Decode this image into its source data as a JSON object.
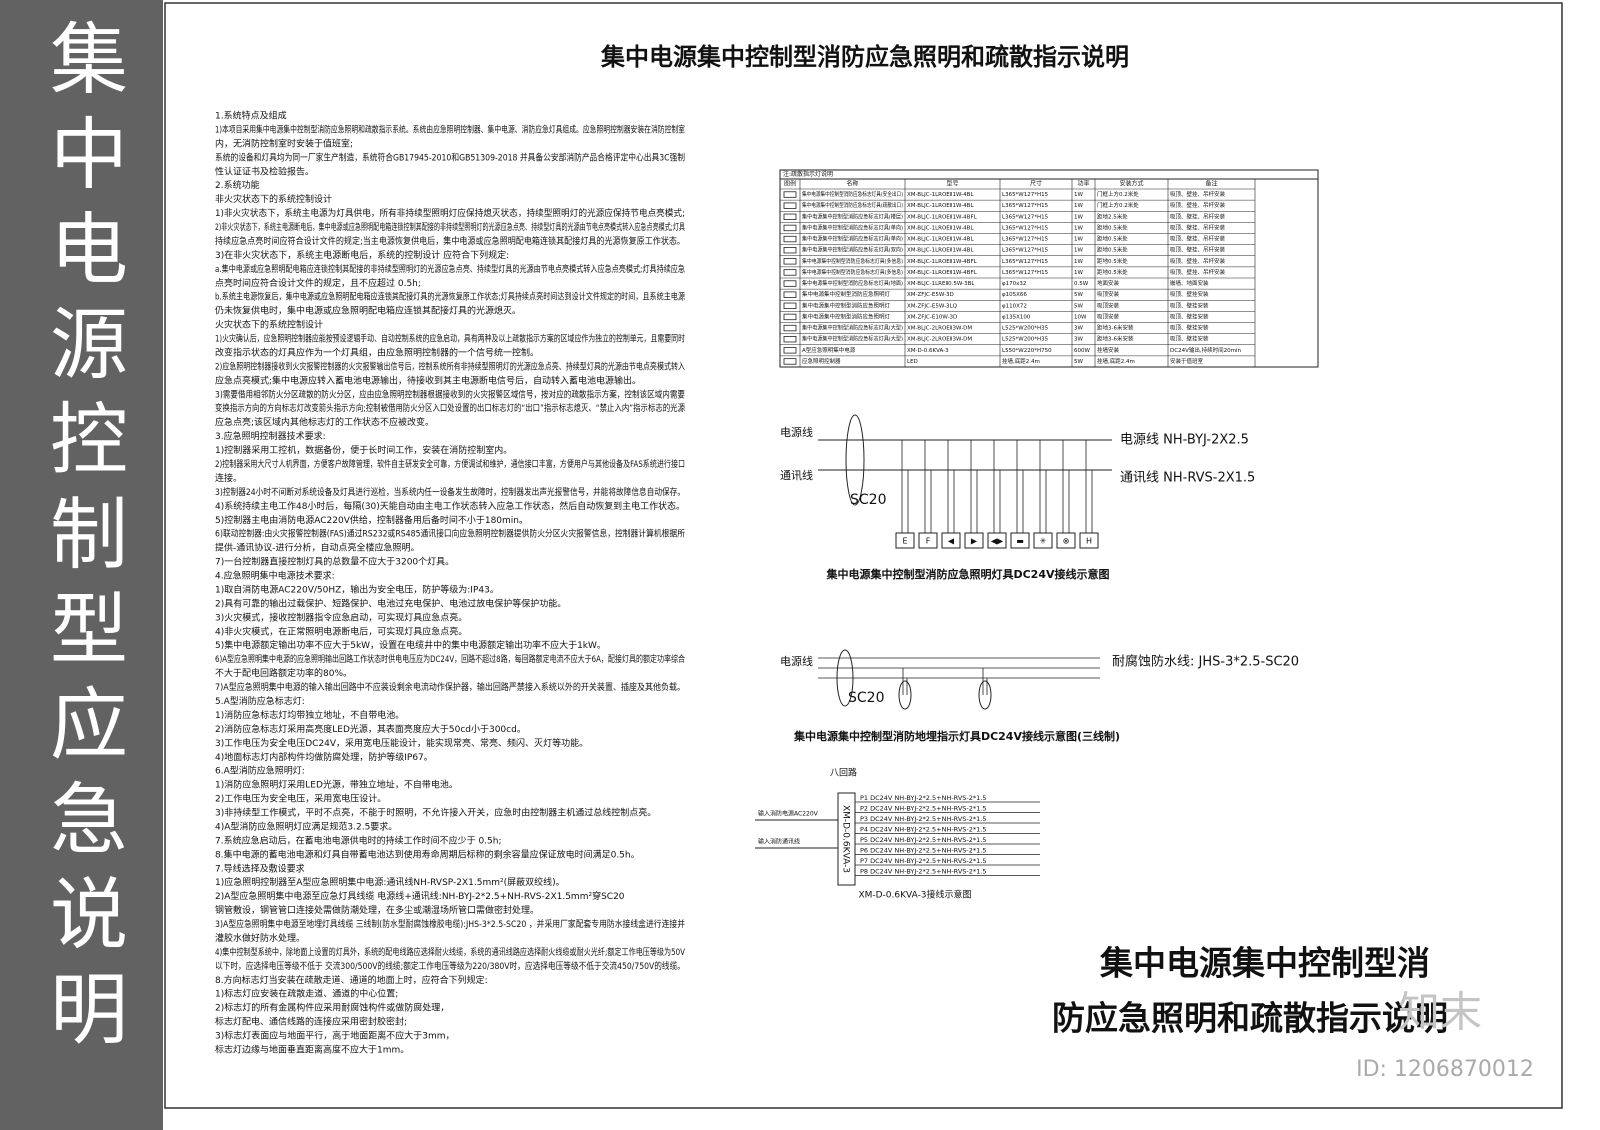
{
  "sidebar": {
    "title": "集中电源控制型应急说明"
  },
  "title": "集中电源集中控制型消防应急照明和疏散指示说明",
  "notes": {
    "lines": [
      "1.系统特点及组成",
      "1)本项目采用集中电源集中控制型消防应急照明和疏散指示系统。系统由应急照明控制器、集中电源、消防应急灯具组成。应急照明控制器安装在消防控制室",
      "内，无消防控制室时安装于值班室;",
      "系统的设备和灯具均为同一厂家生产制造，系统符合GB17945-2010和GB51309-2018 并具备公安部消防产品合格评定中心出具3C强制",
      "性认证证书及检验报告。",
      "2.系统功能",
      "非火灾状态下的系统控制设计",
      "1)非火灾状态下，系统主电源为灯具供电，所有非持续型照明灯应保持熄灭状态，持续型照明灯的光源应保持节电点亮模式;",
      "2)非火灾状态下，系统主电源断电后，集中电源或应急照明配电箱连锁控制其配接的非持续型照明灯的光源应急点亮、持续型灯具的光源由节电点亮模式转入应急点亮模式;灯具",
      "持续应急点亮时间应符合设计文件的规定;当主电源恢复供电后，集中电源或应急照明配电箱连锁其配接灯具的光源恢复原工作状态。",
      "3)在非火灾状态下，系统主电源断电后，系统的控制设计 应符合下列规定:",
      "a.集中电源或应急照明配电箱应连锁控制其配接的非持续型照明灯的光源应急点亮、持续型灯具的光源由节电点亮模式转入应急点亮模式;灯具持续应急",
      "点亮时间应符合设计文件的规定，且不应超过 0.5h;",
      "b.系统主电源恢复后，集中电源或应急照明配电箱应连锁其配接灯具的光源恢复原工作状态;灯具持续点亮时间达到设计文件规定的时间，且系统主电源",
      "仍未恢复供电时，集中电源或应急照明配电箱应连锁其配接灯具的光源熄灭。",
      "火灾状态下的系统控制设计",
      "1)火灾确认后，应急照明控制器应能按预设逻辑手动、自动控制系统的应急启动，具有两种及以上疏散指示方案的区域应作为独立的控制单元，且需要同时",
      "改变指示状态的灯具应作为一个灯具组，由应急照明控制器的一个信号统一控制。",
      "2)应急照明控制器接收到火灾报警控制器的火灾报警输出信号后，控制系统所有非持续型照明灯的光源应急点亮、持续型灯具的光源由节电点亮模式转入",
      "应急点亮模式;集中电源应转入蓄电池电源输出，待接收到其主电源断电信号后，自动转入蓄电池电源输出。",
      "3)需要借用相邻防火分区疏散的防火分区，应由应急照明控制器根据接收到的火灾报警区域信号，按对应的疏散指示方案，控制该区域内需要",
      "变换指示方向的方向标志灯改变箭头指示方向;控制被借用防火分区入口处设置的出口标志灯的“出口”指示标志熄灭、“禁止入内”指示标志的光源",
      "应急点亮;该区域内其他标志灯的工作状态不应被改变。",
      "3.应急照明控制器技术要求:",
      "1)控制器采用工控机，数据备份，便于长时间工作，安装在消防控制室内。",
      "2)控制器采用大尺寸人机界面，方便客户故障管理，软件自主研发安全可靠，方便调试和维护，通信接口丰富，方便用户与其他设备及FAS系统进行接口",
      "连接。",
      "3)控制器24小时不间断对系统设备及灯具进行巡检，当系统内任一设备发生故障时，控制器发出声光报警信号，并能将故障信息自动保存。",
      "4)系统持续主电工作48小时后，每隔(30)天能自动由主电工作状态转入应急工作状态，然后自动恢复到主电工作状态。",
      "5)控制器主电由消防电源AC220V供给，控制器备用后备时间不小于180min。",
      "6)联动控制器:由火灾报警控制器(FAS)通过RS232或RS485通讯接口向应急照明控制器提供防火分区火灾报警信息，控制器计算机根据所",
      "提供-通讯协议-进行分析，自动点亮全楼应急照明。",
      "7)一台控制器直接控制灯具的总数量不应大于3200个灯具。",
      "4.应急照明集中电源技术要求:",
      "1)取自消防电源AC220V/50HZ，输出为安全电压，防护等级为:IP43。",
      "2)具有可靠的输出过载保护、短路保护、电池过充电保护、电池过放电保护等保护功能。",
      "3)火灾模式，接收控制器指令应急启动，可实现灯具应急点亮。",
      "4)非火灾模式，在正常照明电源断电后，可实现灯具应急点亮。",
      "5)集中电源额定输出功率不应大于5kW，设置在电缆井中的集中电源额定输出功率不应大于1kW。",
      "6)A型应急照明集中电源的应急照明输出回路工作状态时供电电压应为DC24V，回路不超过8路，每回路额定电流不应大于6A，配接灯具的额定功率综合",
      "不大于配电回路额定功率的80%。",
      "7)A型应急照明集中电源的输入输出回路中不应装设剩余电流动作保护器，输出回路严禁接入系统以外的开关装置、插座及其他负载。",
      "5.A型消防应急标志灯:",
      "1)消防应急标志灯均带独立地址，不自带电池。",
      "2)消防应急标志灯采用高亮度LED光源，其表面亮度应大于50cd小于300cd。",
      "3)工作电压为安全电压DC24V，采用宽电压能设计，能实现常亮、常亮、频闪、灭灯等功能。",
      "4)地面标志灯内部构件均做防腐处理，防护等级IP67。",
      "6.A型消防应急照明灯:",
      "1)消防应急照明灯采用LED光源，带独立地址，不自带电池。",
      "2)工作电压为安全电压，采用宽电压设计。",
      "3)非持续型工作模式，平时不点亮，不能于时照明，不允许接入开关，应急时由控制器主机通过总线控制点亮。",
      "4)A型消防应急照明灯应满足规范3.2.5要求。",
      "7.系统应急启动后，在蓄电池电源供电时的持续工作时间不应少于 0.5h;",
      "8.集中电源的蓄电池电源和灯具自带蓄电池达到使用寿命周期后标称的剩余容量应保证放电时间满足0.5h。",
      "7.导线选择及敷设要求",
      "1)应急照明控制器至A型应急照明集中电源:通讯线NH-RVSP-2X1.5mm²(屏蔽双绞线)。",
      "2)A型应急照明集中电源至应急灯具线缆 电源线+通讯线:NH-BYJ-2*2.5+NH-RVS-2X1.5mm²穿SC20",
      "钢管敷设，钢管管口连接处需做防潮处理，在多尘或潮湿场所管口需做密封处理。",
      "3)A型应急照明集中电源至地埋灯具线缆 三线制(防水型耐腐蚀橡胶电缆):JHS-3*2.5-SC20 ，并采用厂家配套专用防水接线盒进行连接并",
      "灌胶水做好防水处理。",
      "4)集中控制型系统中，除地面上设置的灯具外，系统的配电线路应选择耐火线缆，系统的通讯线路应选择耐火线缆或耐火光纤;额定工作电压等级为50V",
      "以下时，应选择电压等级不低于 交流300/500V的线缆;额定工作电压等级为220/380V时，应选择电压等级不低于交流450/750V的线缆。",
      "8.方向标志灯当安装在疏散走道、通道的地面上时，应符合下列规定:",
      "1)标志灯应安装在疏散走道、通道的中心位置;",
      "2)标志灯的所有金属构件应采用耐腐蚀构件或做防腐处理，",
      "标志灯配电、通信线路的连接应采用密封胶密封;",
      "3)标志灯表面应与地面平行，高于地面距离不应大于3mm，",
      "标志灯边缘与地面垂直距离高度不应大于1mm。"
    ]
  },
  "table": {
    "caption": "注:疏散指示灯说明",
    "header": [
      "图例",
      "名称",
      "型号",
      "尺寸",
      "功率",
      "安装方式",
      "备注"
    ],
    "rows": [
      [
        "集中电源集中控制型消防应急标志灯具(安全出口)",
        "XM-BLJC-1LROEⅡ1W-4BL",
        "L365*W127*H15",
        "1W",
        "门框上方0.2米处",
        "吸顶、壁挂、吊杆安装"
      ],
      [
        "集中电源集中控制型消防应急标志灯具(疏散出口)",
        "XM-BLJC-1LROEⅡ1W-4BL",
        "L365*W127*H15",
        "1W",
        "门框上方0.2米处",
        "吸顶、壁挂、吊杆安装"
      ],
      [
        "集中电源集中控制型消防应急标志灯具(楼层)",
        "XM-BLJC-1LROEⅡ1W-4BFL",
        "L365*W127*H15",
        "1W",
        "距地2.5米处",
        "吸顶、壁挂、吊杆安装"
      ],
      [
        "集中电源集中控制型消防应急标志灯具(单向)",
        "XM-BLJC-1LROEⅡ1W-4BL",
        "L365*W127*H15",
        "1W",
        "距地0.5米处",
        "吸顶、壁挂、吊杆安装"
      ],
      [
        "集中电源集中控制型消防应急标志灯具(单向)",
        "XM-BLJC-1LROEⅡ1W-4BL",
        "L365*W127*H15",
        "1W",
        "距地0.5米处",
        "吸顶、壁挂、吊杆安装"
      ],
      [
        "集中电源集中控制型消防应急标志灯具(双向)",
        "XM-BLJC-1LROEⅡ1W-4BL",
        "L365*W127*H15",
        "1W",
        "距地0.5米处",
        "吸顶、壁挂、吊杆安装"
      ],
      [
        "集中电源集中控制型消防应急标志灯具(多信息)",
        "XM-BLJC-1LROEⅡ1W-4BFL",
        "L365*W127*H15",
        "1W",
        "距地0.5米处",
        "吸顶、壁挂、吊杆安装"
      ],
      [
        "集中电源集中控制型消防应急标志灯具(多信息)",
        "XM-BLJC-1LROEⅡ1W-4BFL",
        "L365*W127*H15",
        "1W",
        "距地0.5米处",
        "吸顶、壁挂、吊杆安装"
      ],
      [
        "集中电源集中控制型消防应急标志灯具(地面)",
        "XM-BLJC-1LREⅡ0.5W-3BL",
        "φ170x32",
        "0.5W",
        "地面安装",
        "嵌墙、地面安装"
      ],
      [
        "集中电源集中控制型消防应急照明灯",
        "XM-ZFJC-E5W-3D",
        "φ105X66",
        "5W",
        "吸顶安装",
        "吸顶、壁挂安装"
      ],
      [
        "集中电源集中控制型消防应急照明灯",
        "XM-ZFJC-E5W-3LQ",
        "φ110X72",
        "5W",
        "吸顶安装",
        "吸顶、壁挂安装"
      ],
      [
        "集中电源集中控制型消防应急照明灯",
        "XM-ZFJC-E10W-3D",
        "φ135X100",
        "10W",
        "吸顶安装",
        "吸顶、壁挂安装"
      ],
      [
        "集中电源集中控制型消防应急标志灯具(大型)",
        "XM-BLJC-2LROEⅡ3W-DM",
        "L525*W200*H35",
        "3W",
        "距地3-6米安装",
        "吸顶、壁挂安装"
      ],
      [
        "集中电源集中控制型消防应急标志灯具(大型)",
        "XM-BLJC-2LROEⅡ3W-DM",
        "L525*W200*H35",
        "3W",
        "距地3-6米安装",
        "吸顶、壁挂安装"
      ],
      [
        "A型应急照明集中电源",
        "XM-D-0.6KVA-3",
        "L550*W220*H750",
        "600W",
        "挂墙安装",
        "DC24V输出,持续时间20min"
      ],
      [
        "应急照明控制器",
        "LED",
        "挂墙,底距2.4m",
        "5W",
        "挂墙,底距2.4m",
        "安装于值班室"
      ]
    ]
  },
  "diagram1": {
    "power_label": "电源线",
    "comm_label": "通讯线",
    "conduit": "SC20",
    "power_cable": "电源线 NH-BYJ-2X2.5",
    "comm_cable": "通讯线 NH-RVS-2X1.5",
    "symbols": [
      "E",
      "F",
      "◀",
      "▶",
      "◀▶",
      "▬",
      "✳",
      "⊗",
      "H"
    ],
    "caption": "集中电源集中控制型消防应急照明灯具DC24V接线示意图"
  },
  "diagram2": {
    "power_label": "电源线",
    "conduit": "SC20",
    "cable": "耐腐蚀防水线: JHS-3*2.5-SC20",
    "caption": "集中电源集中控制型消防地埋指示灯具DC24V接线示意图(三线制)"
  },
  "diagram3": {
    "loops": "八回路",
    "device": "XM-D-0.6KVA-3",
    "input_power": "输入消防电源AC220V",
    "input_comm": "输入消防通讯线",
    "circuits": [
      "P1 DC24V NH-BYJ-2*2.5+NH-RVS-2*1.5",
      "P2 DC24V NH-BYJ-2*2.5+NH-RVS-2*1.5",
      "P3 DC24V NH-BYJ-2*2.5+NH-RVS-2*1.5",
      "P4 DC24V NH-BYJ-2*2.5+NH-RVS-2*1.5",
      "P5 DC24V NH-BYJ-2*2.5+NH-RVS-2*1.5",
      "P6 DC24V NH-BYJ-2*2.5+NH-RVS-2*1.5",
      "P7 DC24V NH-BYJ-2*2.5+NH-RVS-2*1.5",
      "P8 DC24V NH-BYJ-2*2.5+NH-RVS-2*1.5"
    ],
    "caption": "XM-D-0.6KVA-3接线示意图"
  },
  "footer": {
    "line1": "集中电源集中控制型消",
    "line2": "防应急照明和疏散指示说明"
  },
  "watermark": {
    "brand": "知末",
    "id": "ID: 1206870012"
  }
}
